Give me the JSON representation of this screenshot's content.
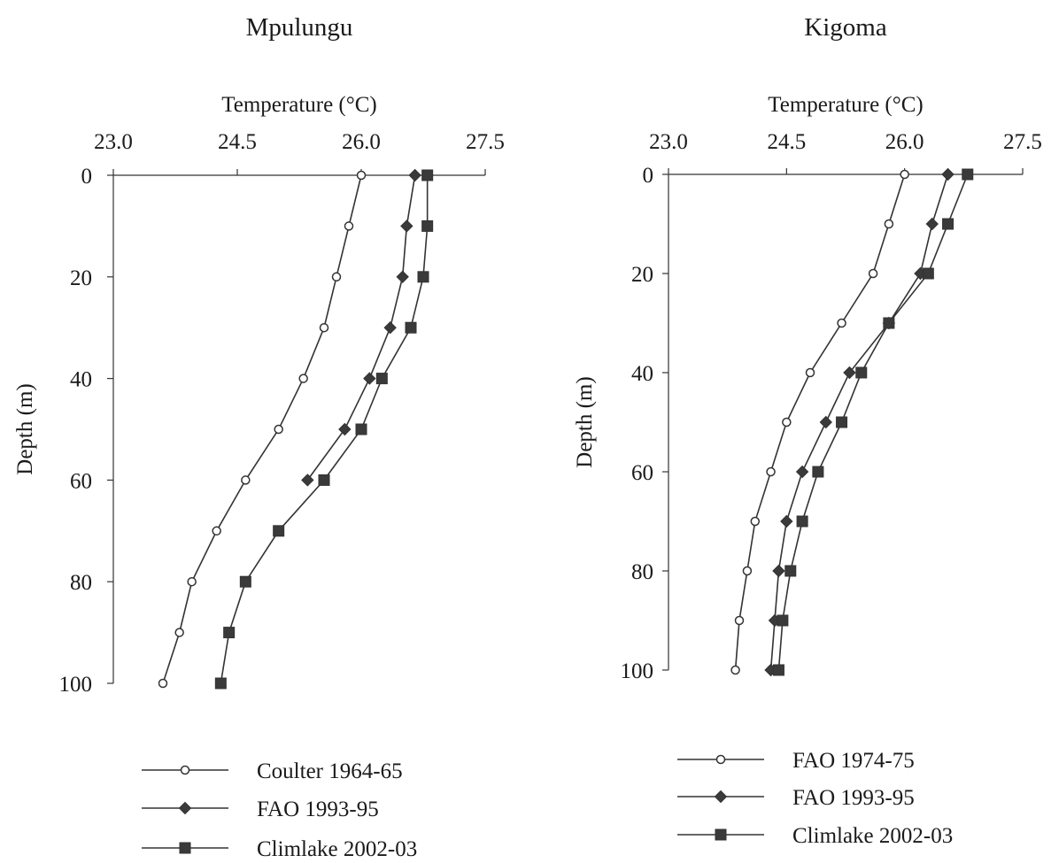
{
  "chart_data": [
    {
      "type": "line",
      "title": "Mpulungu",
      "xlabel": "Temperature (°C)",
      "ylabel": "Depth (m)",
      "xlim": [
        23.0,
        27.5
      ],
      "ylim": [
        0,
        100
      ],
      "y_inverted": true,
      "x_axis_position": "top",
      "x_ticks": [
        "23.0",
        "24.5",
        "26.0",
        "27.5"
      ],
      "y_ticks": [
        "0",
        "20",
        "40",
        "60",
        "80",
        "100"
      ],
      "grid": false,
      "legend_position": "bottom",
      "series": [
        {
          "name": "Coulter 1964-65",
          "marker": "open-circle",
          "color": "#333333",
          "points": [
            [
              26.0,
              0
            ],
            [
              25.85,
              10
            ],
            [
              25.7,
              20
            ],
            [
              25.55,
              30
            ],
            [
              25.3,
              40
            ],
            [
              25.0,
              50
            ],
            [
              24.6,
              60
            ],
            [
              24.25,
              70
            ],
            [
              23.95,
              80
            ],
            [
              23.8,
              90
            ],
            [
              23.6,
              100
            ]
          ]
        },
        {
          "name": "FAO 1993-95",
          "marker": "diamond",
          "color": "#333333",
          "points": [
            [
              26.65,
              0
            ],
            [
              26.55,
              10
            ],
            [
              26.5,
              20
            ],
            [
              26.35,
              30
            ],
            [
              26.1,
              40
            ],
            [
              25.8,
              50
            ],
            [
              25.35,
              60
            ]
          ]
        },
        {
          "name": "Climlake 2002-03",
          "marker": "square",
          "color": "#333333",
          "points": [
            [
              26.8,
              0
            ],
            [
              26.8,
              10
            ],
            [
              26.75,
              20
            ],
            [
              26.6,
              30
            ],
            [
              26.25,
              40
            ],
            [
              26.0,
              50
            ],
            [
              25.55,
              60
            ],
            [
              25.0,
              70
            ],
            [
              24.6,
              80
            ],
            [
              24.4,
              90
            ],
            [
              24.3,
              100
            ]
          ]
        }
      ]
    },
    {
      "type": "line",
      "title": "Kigoma",
      "xlabel": "Temperature (°C)",
      "ylabel": "Depth (m)",
      "xlim": [
        23.0,
        27.5
      ],
      "ylim": [
        0,
        100
      ],
      "y_inverted": true,
      "x_axis_position": "top",
      "x_ticks": [
        "23.0",
        "24.5",
        "26.0",
        "27.5"
      ],
      "y_ticks": [
        "0",
        "20",
        "40",
        "60",
        "80",
        "100"
      ],
      "grid": false,
      "legend_position": "bottom",
      "series": [
        {
          "name": "FAO 1974-75",
          "marker": "open-circle",
          "color": "#333333",
          "points": [
            [
              26.0,
              0
            ],
            [
              25.8,
              10
            ],
            [
              25.6,
              20
            ],
            [
              25.2,
              30
            ],
            [
              24.8,
              40
            ],
            [
              24.5,
              50
            ],
            [
              24.3,
              60
            ],
            [
              24.1,
              70
            ],
            [
              24.0,
              80
            ],
            [
              23.9,
              90
            ],
            [
              23.85,
              100
            ]
          ]
        },
        {
          "name": "FAO 1993-95",
          "marker": "diamond",
          "color": "#333333",
          "points": [
            [
              26.55,
              0
            ],
            [
              26.35,
              10
            ],
            [
              26.2,
              20
            ],
            [
              25.8,
              30
            ],
            [
              25.3,
              40
            ],
            [
              25.0,
              50
            ],
            [
              24.7,
              60
            ],
            [
              24.5,
              70
            ],
            [
              24.4,
              80
            ],
            [
              24.35,
              90
            ],
            [
              24.3,
              100
            ]
          ]
        },
        {
          "name": "Climlake 2002-03",
          "marker": "square",
          "color": "#333333",
          "points": [
            [
              26.8,
              0
            ],
            [
              26.55,
              10
            ],
            [
              26.3,
              20
            ],
            [
              25.8,
              30
            ],
            [
              25.45,
              40
            ],
            [
              25.2,
              50
            ],
            [
              24.9,
              60
            ],
            [
              24.7,
              70
            ],
            [
              24.55,
              80
            ],
            [
              24.45,
              90
            ],
            [
              24.4,
              100
            ]
          ]
        }
      ]
    }
  ]
}
